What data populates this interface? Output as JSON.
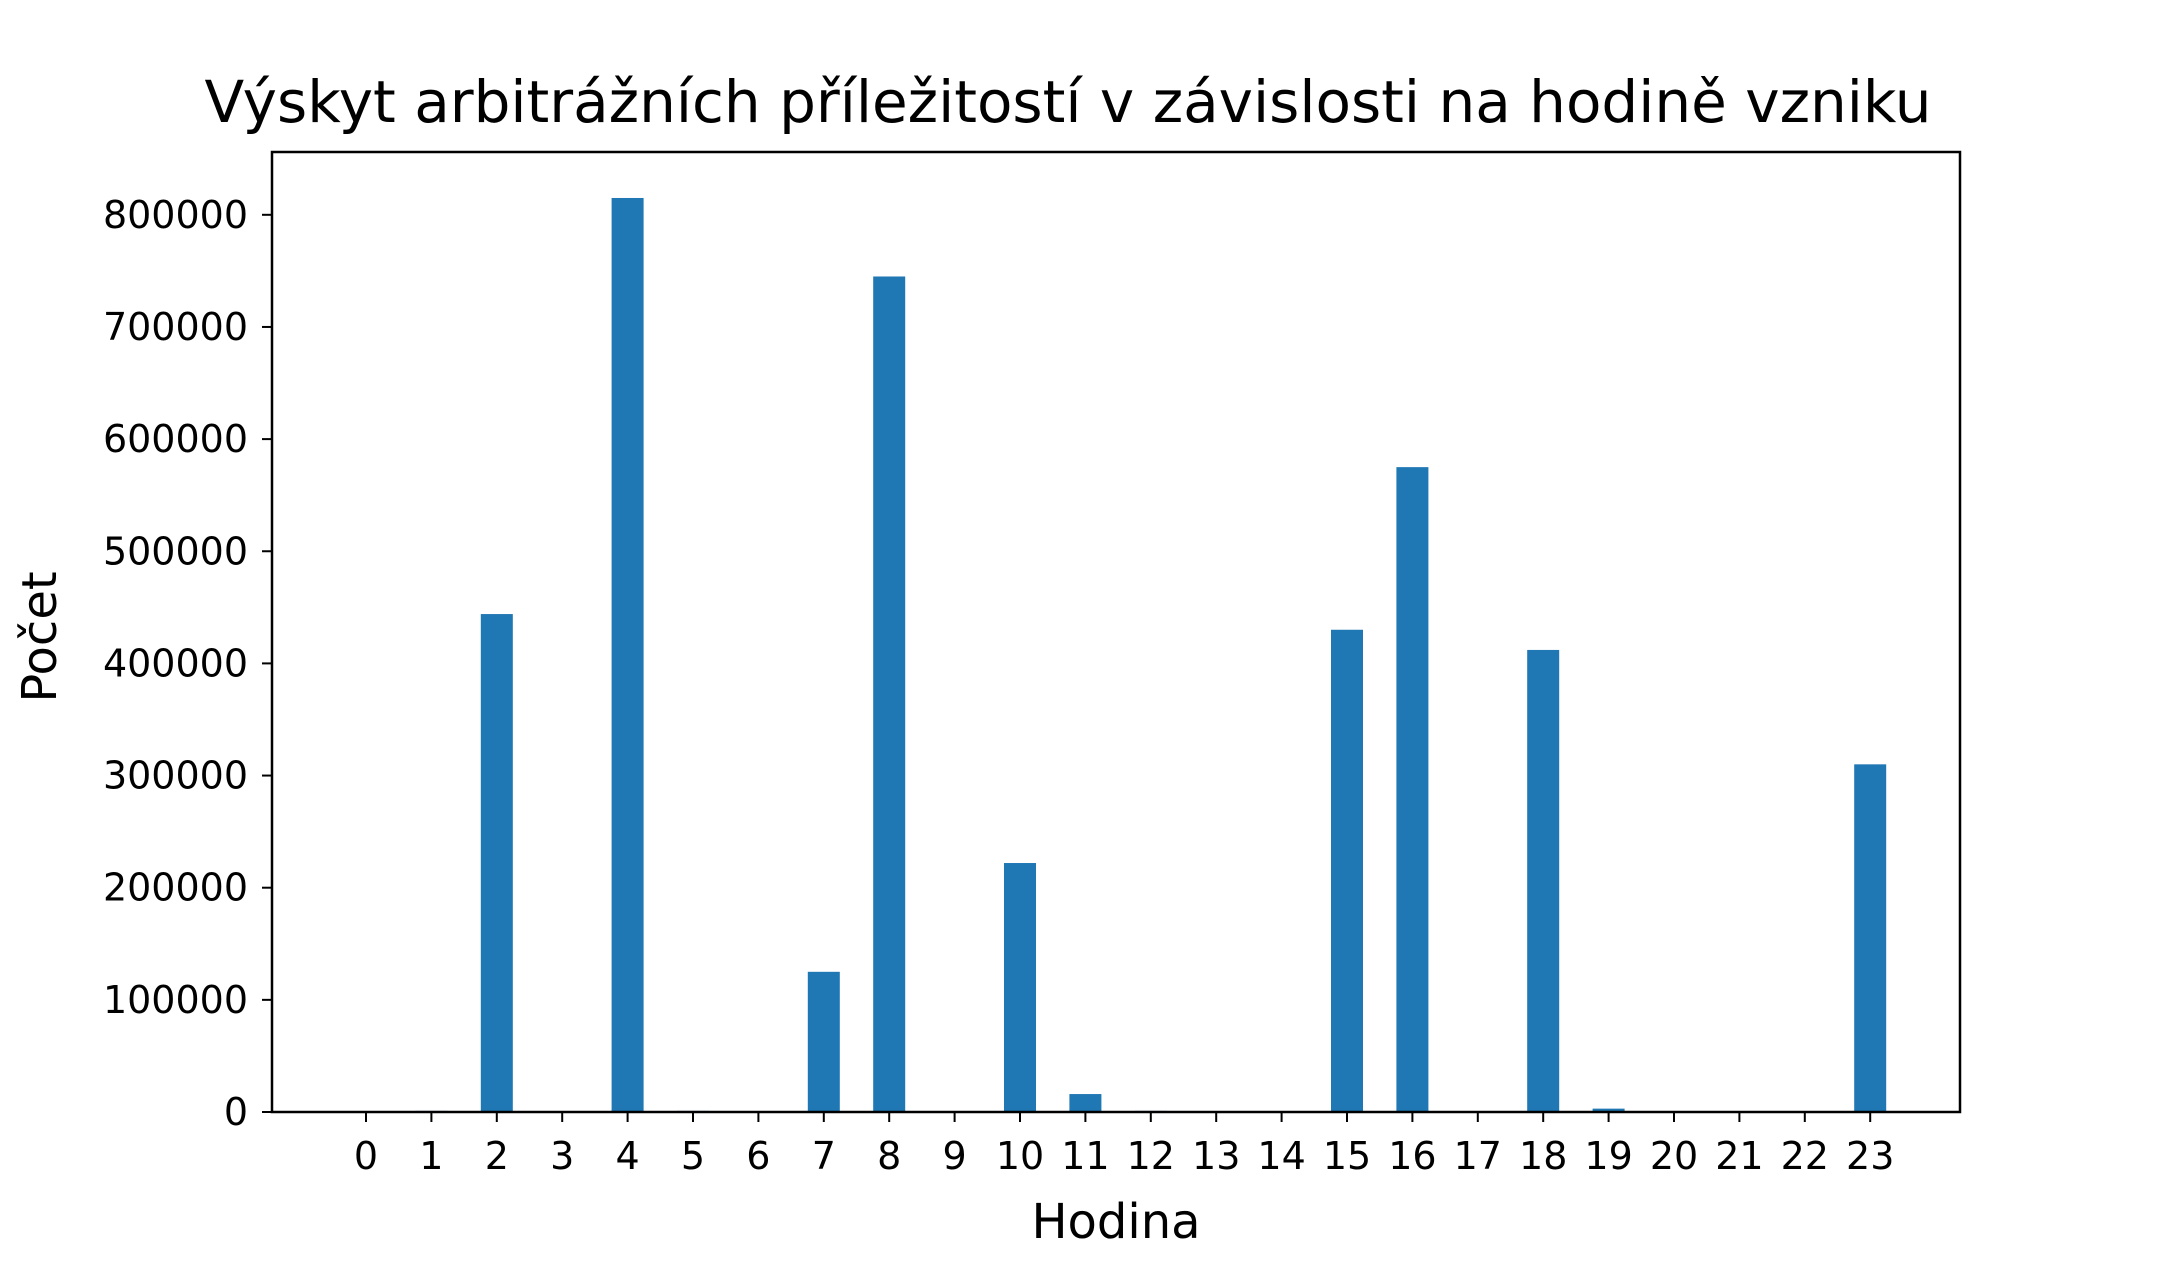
{
  "chart_data": {
    "type": "bar",
    "title": "Výskyt arbitrážních příležitostí v závislosti na hodině vzniku",
    "xlabel": "Hodina",
    "ylabel": "Počet",
    "categories": [
      "0",
      "1",
      "2",
      "3",
      "4",
      "5",
      "6",
      "7",
      "8",
      "9",
      "10",
      "11",
      "12",
      "13",
      "14",
      "15",
      "16",
      "17",
      "18",
      "19",
      "20",
      "21",
      "22",
      "23"
    ],
    "values": [
      0,
      1000,
      444000,
      0,
      815000,
      1000,
      0,
      125000,
      745000,
      0,
      222000,
      16000,
      1000,
      0,
      0,
      430000,
      575000,
      0,
      412000,
      3000,
      0,
      0,
      0,
      310000
    ],
    "yticks": [
      0,
      100000,
      200000,
      300000,
      400000,
      500000,
      600000,
      700000,
      800000
    ],
    "ylim": [
      0,
      856000
    ],
    "grid": false,
    "bar_color": "#1f77b4"
  }
}
